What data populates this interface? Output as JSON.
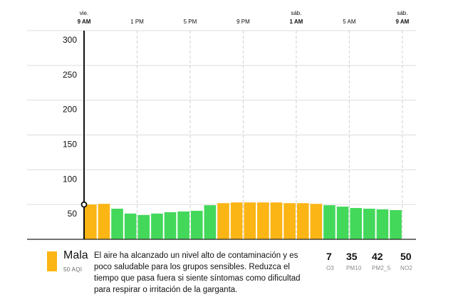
{
  "chart_data": {
    "type": "bar",
    "ylim": [
      0,
      300
    ],
    "yticks": [
      50,
      100,
      150,
      200,
      250,
      300
    ],
    "x_labels": [
      {
        "day": "vie.",
        "time": "9 AM",
        "bold": true,
        "index": 0
      },
      {
        "day": "",
        "time": "1 PM",
        "bold": false,
        "index": 4
      },
      {
        "day": "",
        "time": "5 PM",
        "bold": false,
        "index": 8
      },
      {
        "day": "",
        "time": "9 PM",
        "bold": false,
        "index": 12
      },
      {
        "day": "sáb.",
        "time": "1 AM",
        "bold": true,
        "index": 16
      },
      {
        "day": "",
        "time": "5 AM",
        "bold": false,
        "index": 20
      },
      {
        "day": "sáb.",
        "time": "9 AM",
        "bold": true,
        "index": 24
      }
    ],
    "values": [
      50,
      51,
      44,
      37,
      35,
      37,
      39,
      40,
      41,
      49,
      52,
      53,
      53,
      53,
      53,
      52,
      52,
      51,
      49,
      47,
      45,
      44,
      43,
      42
    ],
    "threshold": 50,
    "colors": {
      "good": "#43d85a",
      "moderate": "#fbb514"
    },
    "current": {
      "index": 0,
      "value": 50
    }
  },
  "footer": {
    "level": "Mala",
    "aqi": "50 AQI",
    "level_color": "#fbb514",
    "message": "El aire ha alcanzado un nivel alto de contaminación y es poco saludable para los grupos sensibles. Reduzca el tiempo que pasa fuera si siente síntomas como dificultad para respirar o irritación de la garganta.",
    "pollutants": [
      {
        "value": "7",
        "name": "O3"
      },
      {
        "value": "35",
        "name": "PM10"
      },
      {
        "value": "42",
        "name": "PM2_5"
      },
      {
        "value": "50",
        "name": "NO2"
      }
    ]
  }
}
